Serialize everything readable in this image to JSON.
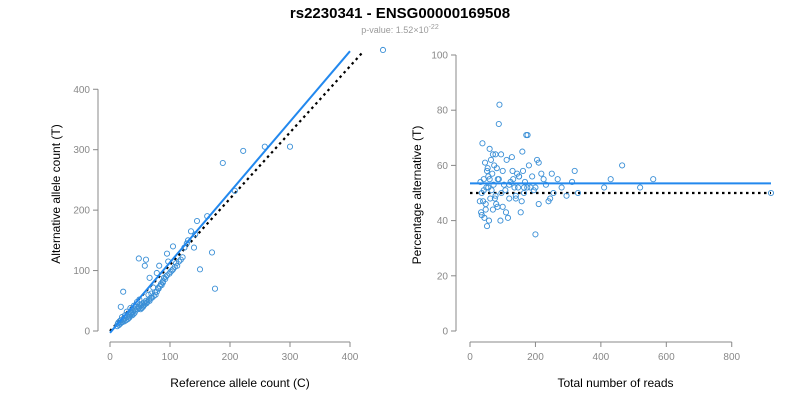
{
  "header": {
    "title": "rs2230341 - ENSG00000169508",
    "pvalue_prefix": "p-value: 1.52×10",
    "pvalue_exponent": "-22"
  },
  "colors": {
    "points": "#3a8fd6",
    "fit_line": "#2288ee",
    "reference_line": "#000000",
    "axis": "#888888"
  },
  "chart_data": [
    {
      "type": "scatter",
      "title": "",
      "xlabel": "Reference allele count (C)",
      "ylabel": "Alternative allele count (T)",
      "xlim": [
        0,
        450
      ],
      "ylim": [
        0,
        460
      ],
      "xticks": [
        0,
        100,
        200,
        300,
        400
      ],
      "yticks": [
        0,
        100,
        200,
        300,
        400
      ],
      "fit_line": {
        "style": "solid",
        "x": [
          0,
          400
        ],
        "y": [
          -3,
          463
        ]
      },
      "reference_line": {
        "style": "dotted",
        "x": [
          0,
          420
        ],
        "y": [
          0,
          460
        ]
      },
      "x": [
        455,
        300,
        258,
        222,
        208,
        188,
        162,
        145,
        140,
        135,
        128,
        124,
        121,
        118,
        115,
        112,
        110,
        108,
        105,
        103,
        101,
        99,
        97,
        95,
        93,
        92,
        90,
        88,
        86,
        85,
        83,
        81,
        80,
        78,
        76,
        75,
        73,
        72,
        70,
        69,
        68,
        66,
        65,
        64,
        62,
        61,
        60,
        58,
        57,
        56,
        55,
        54,
        53,
        52,
        51,
        50,
        49,
        48,
        47,
        46,
        45,
        44,
        43,
        42,
        41,
        40,
        39,
        38,
        37,
        36,
        35,
        34,
        33,
        32,
        31,
        30,
        29,
        28,
        27,
        26,
        25,
        24,
        23,
        22,
        21,
        20,
        19,
        18,
        17,
        16,
        15,
        14,
        13,
        12,
        150,
        170,
        175,
        95,
        82,
        60,
        48,
        22,
        35,
        66,
        78,
        88,
        105,
        58,
        130,
        142,
        18
      ],
      "y": [
        465,
        305,
        305,
        298,
        232,
        278,
        190,
        182,
        138,
        165,
        145,
        138,
        122,
        118,
        115,
        108,
        112,
        106,
        102,
        100,
        98,
        95,
        115,
        128,
        90,
        86,
        88,
        82,
        76,
        78,
        74,
        70,
        71,
        65,
        60,
        64,
        58,
        72,
        55,
        62,
        55,
        50,
        52,
        60,
        48,
        46,
        50,
        44,
        47,
        42,
        40,
        45,
        38,
        42,
        36,
        44,
        52,
        38,
        40,
        36,
        48,
        40,
        34,
        36,
        30,
        42,
        28,
        32,
        26,
        30,
        28,
        38,
        24,
        22,
        27,
        20,
        24,
        32,
        18,
        22,
        26,
        16,
        20,
        18,
        15,
        23,
        14,
        18,
        12,
        16,
        10,
        14,
        12,
        8,
        102,
        130,
        70,
        92,
        108,
        118,
        120,
        65,
        30,
        88,
        96,
        80,
        140,
        108,
        150,
        160,
        40
      ]
    },
    {
      "type": "scatter",
      "title": "",
      "xlabel": "Total number of reads",
      "ylabel": "Percentage alternative (T)",
      "xlim": [
        0,
        920
      ],
      "ylim": [
        0,
        100
      ],
      "xticks": [
        0,
        200,
        400,
        600,
        800
      ],
      "yticks": [
        0,
        20,
        40,
        60,
        80,
        100
      ],
      "fit_line": {
        "style": "solid",
        "x": [
          0,
          920
        ],
        "y": [
          53.5,
          53.5
        ]
      },
      "reference_line": {
        "style": "dotted",
        "x": [
          0,
          920
        ],
        "y": [
          50,
          50
        ]
      },
      "x": [
        920,
        560,
        520,
        465,
        430,
        410,
        330,
        320,
        312,
        295,
        280,
        268,
        255,
        245,
        240,
        232,
        225,
        218,
        210,
        205,
        200,
        195,
        190,
        185,
        180,
        176,
        172,
        168,
        165,
        162,
        158,
        155,
        150,
        147,
        144,
        140,
        136,
        132,
        128,
        124,
        120,
        116,
        112,
        108,
        104,
        100,
        96,
        93,
        90,
        88,
        85,
        82,
        80,
        78,
        76,
        74,
        72,
        70,
        68,
        66,
        64,
        62,
        60,
        58,
        56,
        54,
        52,
        50,
        48,
        46,
        44,
        42,
        40,
        38,
        36,
        34,
        32,
        30,
        95,
        100,
        110,
        130,
        160,
        175,
        200,
        210,
        60,
        70,
        88,
        120,
        140,
        48,
        52,
        56,
        36,
        42,
        78,
        84,
        150,
        165,
        250
      ],
      "y": [
        50,
        55,
        52,
        60,
        55,
        52,
        50,
        58,
        54,
        49,
        52,
        55,
        50,
        48,
        47,
        53,
        55,
        57,
        61,
        62,
        35,
        51,
        56,
        52,
        60,
        71,
        71,
        54,
        50,
        58,
        47,
        43,
        56,
        52,
        57,
        49,
        52,
        55,
        63,
        54,
        48,
        41,
        62,
        51,
        53,
        45,
        50,
        40,
        82,
        75,
        55,
        59,
        46,
        64,
        48,
        60,
        53,
        44,
        57,
        51,
        62,
        48,
        55,
        40,
        56,
        59,
        38,
        52,
        46,
        61,
        41,
        55,
        47,
        68,
        50,
        43,
        54,
        47,
        64,
        58,
        43,
        58,
        65,
        52,
        52,
        46,
        66,
        64,
        55,
        53,
        48,
        44,
        58,
        52,
        42,
        51,
        49,
        45,
        56,
        52,
        57
      ]
    }
  ]
}
